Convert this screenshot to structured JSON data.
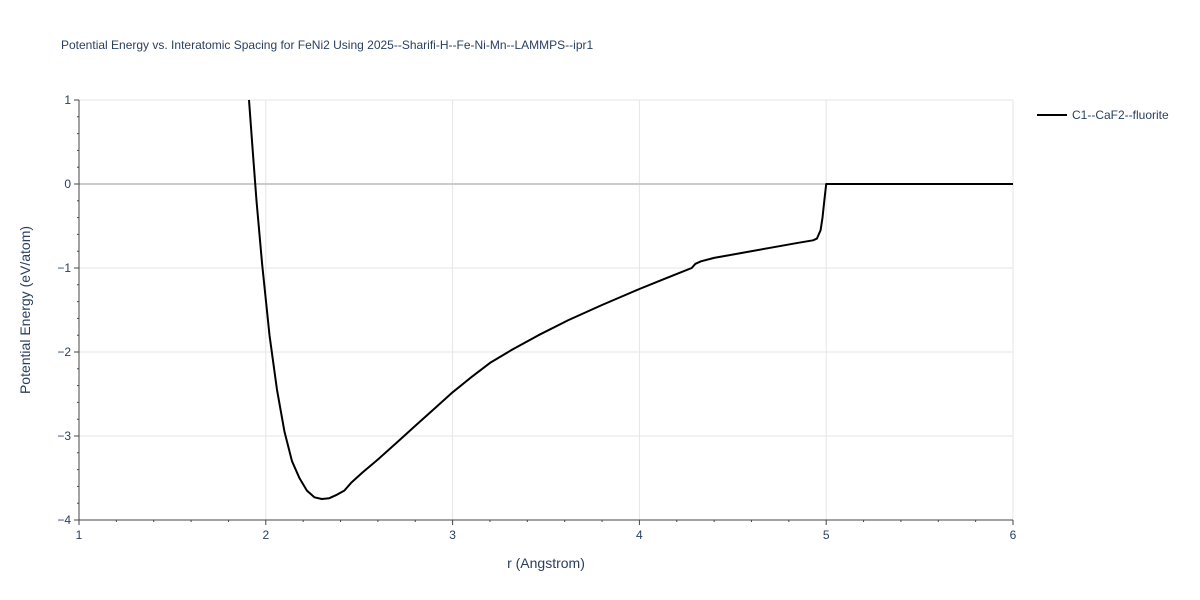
{
  "chart_data": {
    "type": "line",
    "title": "Potential Energy vs. Interatomic Spacing for FeNi2 Using 2025--Sharifi-H--Fe-Ni-Mn--LAMMPS--ipr1",
    "xlabel": "r (Angstrom)",
    "ylabel": "Potential Energy (eV/atom)",
    "xlim": [
      1,
      6
    ],
    "ylim": [
      -4,
      1
    ],
    "x_ticks": [
      1,
      2,
      3,
      4,
      5,
      6
    ],
    "x_tick_labels": [
      "1",
      "2",
      "3",
      "4",
      "5",
      "6"
    ],
    "y_ticks": [
      -4,
      -3,
      -2,
      -1,
      0,
      1
    ],
    "y_tick_labels": [
      "−4",
      "−3",
      "−2",
      "−1",
      "0",
      "1"
    ],
    "grid": true,
    "legend_position": "top-right",
    "series": [
      {
        "name": "C1--CaF2--fluorite",
        "color": "#000000",
        "x": [
          1.91,
          1.93,
          1.95,
          1.98,
          2.02,
          2.06,
          2.1,
          2.14,
          2.18,
          2.22,
          2.26,
          2.3,
          2.34,
          2.38,
          2.42,
          2.46,
          2.52,
          2.6,
          2.7,
          2.8,
          2.9,
          3.0,
          3.1,
          3.2,
          3.32,
          3.46,
          3.62,
          3.8,
          4.0,
          4.1,
          4.2,
          4.28,
          4.3,
          4.33,
          4.4,
          4.55,
          4.7,
          4.85,
          4.93,
          4.95,
          4.97,
          4.98,
          4.99,
          5.0,
          5.1,
          5.5,
          6.0
        ],
        "y": [
          1.0,
          0.4,
          -0.2,
          -0.95,
          -1.8,
          -2.45,
          -2.95,
          -3.3,
          -3.5,
          -3.65,
          -3.73,
          -3.75,
          -3.74,
          -3.7,
          -3.65,
          -3.55,
          -3.43,
          -3.28,
          -3.08,
          -2.88,
          -2.68,
          -2.48,
          -2.3,
          -2.13,
          -1.97,
          -1.8,
          -1.62,
          -1.44,
          -1.25,
          -1.16,
          -1.07,
          -1.0,
          -0.95,
          -0.92,
          -0.88,
          -0.82,
          -0.76,
          -0.7,
          -0.67,
          -0.65,
          -0.55,
          -0.4,
          -0.2,
          0.0,
          0.0,
          0.0,
          0.0
        ]
      }
    ]
  }
}
